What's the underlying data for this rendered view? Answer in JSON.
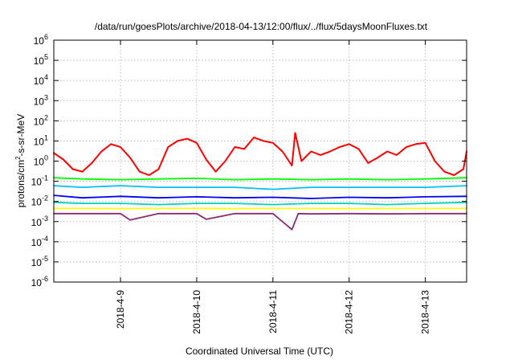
{
  "chart_data": {
    "type": "line",
    "title": "/data/run/goesPlots/archive/2018-04-13/12:00/flux/../flux/5daysMoonFluxes.txt",
    "xlabel": "Coordinated Universal Time (UTC)",
    "ylabel": {
      "base": "protons/cm",
      "sup": "2",
      "rest": "-s-sr-MeV"
    },
    "yscale": "log",
    "ylim_exponents": [
      -6,
      6
    ],
    "xlim": [
      "2018-04-08T03:00",
      "2018-04-13T13:00"
    ],
    "grid": true,
    "legend": "none",
    "y_ticks": [
      {
        "base": "10",
        "exp": "-6"
      },
      {
        "base": "10",
        "exp": "-5"
      },
      {
        "base": "10",
        "exp": "-4"
      },
      {
        "base": "10",
        "exp": "-3"
      },
      {
        "base": "10",
        "exp": "-2"
      },
      {
        "base": "10",
        "exp": "-1"
      },
      {
        "base": "10",
        "exp": "0"
      },
      {
        "base": "10",
        "exp": "1"
      },
      {
        "base": "10",
        "exp": "2"
      },
      {
        "base": "10",
        "exp": "3"
      },
      {
        "base": "10",
        "exp": "4"
      },
      {
        "base": "10",
        "exp": "5"
      },
      {
        "base": "10",
        "exp": "6"
      }
    ],
    "x_ticks": [
      {
        "label": "2018-4-9",
        "date": "2018-04-09T00:00"
      },
      {
        "label": "2018-4-10",
        "date": "2018-04-10T00:00"
      },
      {
        "label": "2018-4-11",
        "date": "2018-04-11T00:00"
      },
      {
        "label": "2018-4-12",
        "date": "2018-04-12T00:00"
      },
      {
        "label": "2018-4-13",
        "date": "2018-04-13T00:00"
      }
    ],
    "series": [
      {
        "color": "#ff0000",
        "x": [
          "2018-04-08T03:00",
          "2018-04-08T06:00",
          "2018-04-08T09:00",
          "2018-04-08T12:00",
          "2018-04-08T15:00",
          "2018-04-08T18:00",
          "2018-04-08T21:00",
          "2018-04-09T00:00",
          "2018-04-09T03:00",
          "2018-04-09T06:00",
          "2018-04-09T09:00",
          "2018-04-09T12:00",
          "2018-04-09T15:00",
          "2018-04-09T18:00",
          "2018-04-09T21:00",
          "2018-04-10T00:00",
          "2018-04-10T03:00",
          "2018-04-10T06:00",
          "2018-04-10T09:00",
          "2018-04-10T12:00",
          "2018-04-10T15:00",
          "2018-04-10T18:00",
          "2018-04-10T21:00",
          "2018-04-11T00:00",
          "2018-04-11T03:00",
          "2018-04-11T06:00",
          "2018-04-11T07:00",
          "2018-04-11T09:00",
          "2018-04-11T12:00",
          "2018-04-11T15:00",
          "2018-04-11T18:00",
          "2018-04-11T21:00",
          "2018-04-12T00:00",
          "2018-04-12T03:00",
          "2018-04-12T06:00",
          "2018-04-12T09:00",
          "2018-04-12T12:00",
          "2018-04-12T15:00",
          "2018-04-12T18:00",
          "2018-04-12T21:00",
          "2018-04-13T00:00",
          "2018-04-13T03:00",
          "2018-04-13T06:00",
          "2018-04-13T09:00",
          "2018-04-13T12:00",
          "2018-04-13T13:00"
        ],
        "values": [
          2.5,
          1.2,
          0.4,
          0.3,
          0.8,
          3,
          7,
          5,
          1.5,
          0.3,
          0.2,
          0.4,
          5,
          10,
          13,
          8,
          1.2,
          0.3,
          1,
          5,
          4,
          15,
          10,
          8,
          3,
          0.6,
          25,
          1,
          3,
          2,
          3,
          5,
          7,
          4,
          0.8,
          1.5,
          3,
          2,
          5,
          7,
          8,
          1,
          0.3,
          0.2,
          0.4,
          3
        ]
      },
      {
        "color": "#00ff00",
        "x": [
          "2018-04-08T03:00",
          "2018-04-08T12:00",
          "2018-04-09T00:00",
          "2018-04-09T12:00",
          "2018-04-10T00:00",
          "2018-04-10T12:00",
          "2018-04-11T00:00",
          "2018-04-11T12:00",
          "2018-04-12T00:00",
          "2018-04-12T12:00",
          "2018-04-13T00:00",
          "2018-04-13T13:00"
        ],
        "values": [
          0.15,
          0.13,
          0.12,
          0.13,
          0.14,
          0.12,
          0.13,
          0.12,
          0.13,
          0.12,
          0.13,
          0.15
        ]
      },
      {
        "color": "#00bfff",
        "x": [
          "2018-04-08T03:00",
          "2018-04-08T12:00",
          "2018-04-09T00:00",
          "2018-04-09T12:00",
          "2018-04-10T00:00",
          "2018-04-10T12:00",
          "2018-04-11T00:00",
          "2018-04-11T12:00",
          "2018-04-12T00:00",
          "2018-04-12T12:00",
          "2018-04-13T00:00",
          "2018-04-13T13:00"
        ],
        "values": [
          0.06,
          0.05,
          0.06,
          0.05,
          0.05,
          0.05,
          0.04,
          0.05,
          0.05,
          0.05,
          0.05,
          0.06
        ]
      },
      {
        "color": "#0000ff",
        "x": [
          "2018-04-08T03:00",
          "2018-04-08T12:00",
          "2018-04-09T00:00",
          "2018-04-09T12:00",
          "2018-04-10T00:00",
          "2018-04-10T12:00",
          "2018-04-11T00:00",
          "2018-04-11T12:00",
          "2018-04-12T00:00",
          "2018-04-12T12:00",
          "2018-04-13T00:00",
          "2018-04-13T13:00"
        ],
        "values": [
          0.02,
          0.015,
          0.018,
          0.015,
          0.017,
          0.015,
          0.016,
          0.014,
          0.016,
          0.015,
          0.017,
          0.018
        ]
      },
      {
        "color": "#00d0c0",
        "x": [
          "2018-04-08T03:00",
          "2018-04-08T12:00",
          "2018-04-09T00:00",
          "2018-04-09T12:00",
          "2018-04-10T00:00",
          "2018-04-10T12:00",
          "2018-04-11T00:00",
          "2018-04-11T12:00",
          "2018-04-12T00:00",
          "2018-04-12T12:00",
          "2018-04-13T00:00",
          "2018-04-13T13:00"
        ],
        "values": [
          0.009,
          0.008,
          0.008,
          0.007,
          0.008,
          0.008,
          0.007,
          0.008,
          0.008,
          0.007,
          0.008,
          0.009
        ]
      },
      {
        "color": "#ffff00",
        "x": [
          "2018-04-08T03:00",
          "2018-04-08T12:00",
          "2018-04-09T00:00",
          "2018-04-09T12:00",
          "2018-04-10T00:00",
          "2018-04-10T12:00",
          "2018-04-11T00:00",
          "2018-04-11T12:00",
          "2018-04-12T00:00",
          "2018-04-12T12:00",
          "2018-04-13T00:00",
          "2018-04-13T13:00"
        ],
        "values": [
          0.0045,
          0.0045,
          0.0044,
          0.0045,
          0.0045,
          0.0044,
          0.0045,
          0.0045,
          0.0044,
          0.0045,
          0.0045,
          0.0045
        ]
      },
      {
        "color": "#8b2a74",
        "x": [
          "2018-04-08T03:00",
          "2018-04-08T12:00",
          "2018-04-09T00:00",
          "2018-04-09T03:00",
          "2018-04-09T12:00",
          "2018-04-10T00:00",
          "2018-04-10T03:00",
          "2018-04-10T12:00",
          "2018-04-11T00:00",
          "2018-04-11T06:00",
          "2018-04-11T08:00",
          "2018-04-11T12:00",
          "2018-04-12T00:00",
          "2018-04-12T12:00",
          "2018-04-13T00:00",
          "2018-04-13T13:00"
        ],
        "values": [
          0.0025,
          0.0025,
          0.0025,
          0.0012,
          0.0025,
          0.0025,
          0.0013,
          0.0025,
          0.0025,
          0.0004,
          0.0025,
          0.0024,
          0.0025,
          0.0024,
          0.0025,
          0.0025
        ]
      }
    ]
  }
}
